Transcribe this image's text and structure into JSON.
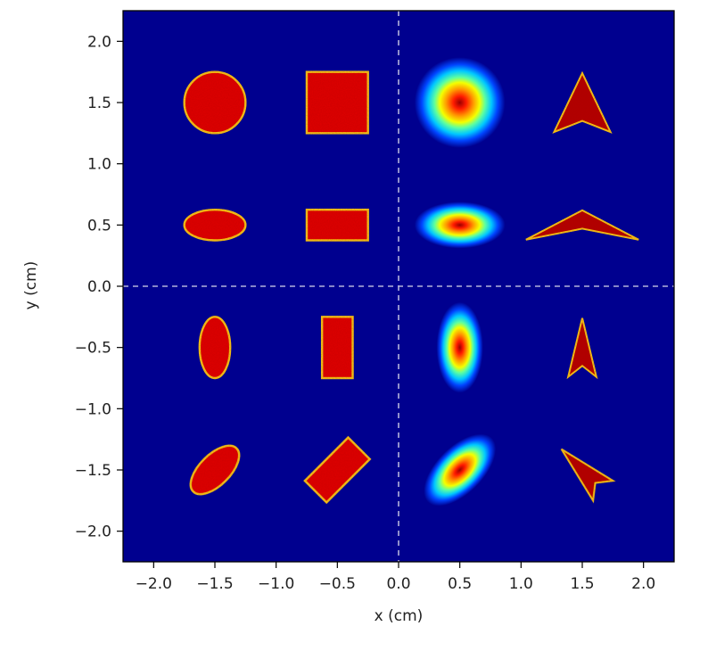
{
  "chart_data": {
    "type": "heatmap",
    "title": "",
    "xlabel": "x (cm)",
    "ylabel": "y (cm)",
    "xlim": [
      -2.25,
      2.25
    ],
    "ylim": [
      -2.25,
      2.25
    ],
    "xticks": [
      -2.0,
      -1.5,
      -1.0,
      -0.5,
      0.0,
      0.5,
      1.0,
      1.5,
      2.0
    ],
    "yticks": [
      -2.0,
      -1.5,
      -1.0,
      -0.5,
      0.0,
      0.5,
      1.0,
      1.5,
      2.0
    ],
    "xtick_labels": [
      "−2.0",
      "−1.5",
      "−1.0",
      "−0.5",
      "0.0",
      "0.5",
      "1.0",
      "1.5",
      "2.0"
    ],
    "ytick_labels": [
      "−2.0",
      "−1.5",
      "−1.0",
      "−0.5",
      "0.0",
      "0.5",
      "1.0",
      "1.5",
      "2.0"
    ],
    "grid": false,
    "colormap": "jet",
    "background_color": "#00008f",
    "reference_lines": {
      "x": 0.0,
      "y": 0.0,
      "style": "dashed",
      "color": "#b4b4dc"
    },
    "shapes": [
      {
        "name": "circle",
        "kind": "ellipse",
        "cx": -1.5,
        "cy": 1.5,
        "rx": 0.25,
        "ry": 0.25,
        "angle": 0
      },
      {
        "name": "square",
        "kind": "rect",
        "cx": -0.5,
        "cy": 1.5,
        "w": 0.5,
        "h": 0.5,
        "angle": 0
      },
      {
        "name": "gaussian-round",
        "kind": "gaussian",
        "cx": 0.5,
        "cy": 1.5,
        "rx": 0.37,
        "ry": 0.37,
        "angle": 0
      },
      {
        "name": "arrow-up-large",
        "kind": "arrow",
        "cx": 1.5,
        "cy": 1.5,
        "size": 0.48,
        "angle": 0
      },
      {
        "name": "ellipse-horizontal",
        "kind": "ellipse",
        "cx": -1.5,
        "cy": 0.5,
        "rx": 0.25,
        "ry": 0.125,
        "angle": 0
      },
      {
        "name": "rect-horizontal",
        "kind": "rect",
        "cx": -0.5,
        "cy": 0.5,
        "w": 0.5,
        "h": 0.25,
        "angle": 0
      },
      {
        "name": "gaussian-horizontal",
        "kind": "gaussian",
        "cx": 0.5,
        "cy": 0.5,
        "rx": 0.37,
        "ry": 0.19,
        "angle": 0
      },
      {
        "name": "arrow-up-wide",
        "kind": "arrow",
        "cx": 1.5,
        "cy": 0.5,
        "size": 0.24,
        "sx": 2.0,
        "angle": 0
      },
      {
        "name": "ellipse-vertical",
        "kind": "ellipse",
        "cx": -1.5,
        "cy": -0.5,
        "rx": 0.125,
        "ry": 0.25,
        "angle": 0
      },
      {
        "name": "rect-vertical",
        "kind": "rect",
        "cx": -0.5,
        "cy": -0.5,
        "w": 0.25,
        "h": 0.5,
        "angle": 0
      },
      {
        "name": "gaussian-vertical",
        "kind": "gaussian",
        "cx": 0.5,
        "cy": -0.5,
        "rx": 0.19,
        "ry": 0.37,
        "angle": 0
      },
      {
        "name": "arrow-up-narrow",
        "kind": "arrow",
        "cx": 1.5,
        "cy": -0.5,
        "size": 0.48,
        "sx": 0.5,
        "angle": 0
      },
      {
        "name": "ellipse-rotated",
        "kind": "ellipse",
        "cx": -1.5,
        "cy": -1.5,
        "rx": 0.25,
        "ry": 0.125,
        "angle": -45
      },
      {
        "name": "rect-rotated",
        "kind": "rect",
        "cx": -0.5,
        "cy": -1.5,
        "w": 0.5,
        "h": 0.25,
        "angle": -45
      },
      {
        "name": "gaussian-rotated",
        "kind": "gaussian",
        "cx": 0.5,
        "cy": -1.5,
        "rx": 0.37,
        "ry": 0.19,
        "angle": -45
      },
      {
        "name": "arrow-rotated",
        "kind": "arrow",
        "cx": 1.5,
        "cy": -1.5,
        "size": 0.48,
        "sx": 0.5,
        "angle": -45
      }
    ]
  }
}
